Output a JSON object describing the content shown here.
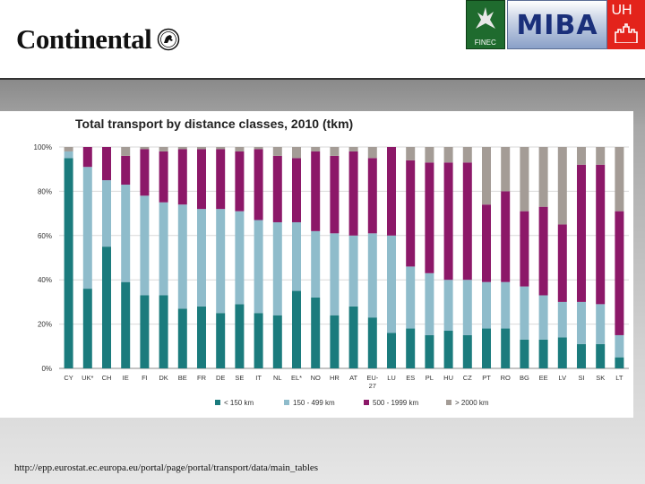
{
  "header": {
    "company_logo": "Continental",
    "partner_logos": {
      "finec": "FINEC",
      "miba": "MIBA",
      "uhh": "UH"
    }
  },
  "chart_data": {
    "type": "bar",
    "stacked": true,
    "title": "Total transport by distance classes, 2010 (tkm)",
    "ylim": [
      0,
      100
    ],
    "yticks": [
      "0%",
      "20%",
      "40%",
      "60%",
      "80%",
      "100%"
    ],
    "categories": [
      "CY",
      "UK*",
      "CH",
      "IE",
      "FI",
      "DK",
      "BE",
      "FR",
      "DE",
      "SE",
      "IT",
      "NL",
      "EL*",
      "NO",
      "HR",
      "AT",
      "EU-27",
      "LU",
      "ES",
      "PL",
      "HU",
      "CZ",
      "PT",
      "RO",
      "BG",
      "EE",
      "LV",
      "SI",
      "SK",
      "LT"
    ],
    "series": [
      {
        "name": "< 150 km",
        "color": "#1b7b7d",
        "values": [
          95,
          36,
          55,
          39,
          33,
          33,
          27,
          28,
          25,
          29,
          25,
          24,
          35,
          32,
          24,
          28,
          23,
          16,
          18,
          15,
          17,
          15,
          18,
          18,
          13,
          13,
          14,
          11,
          11,
          5
        ]
      },
      {
        "name": "150 - 499 km",
        "color": "#8fbccb",
        "values": [
          3,
          55,
          30,
          44,
          45,
          42,
          47,
          44,
          47,
          42,
          42,
          42,
          31,
          30,
          37,
          32,
          38,
          44,
          28,
          28,
          23,
          25,
          21,
          21,
          24,
          20,
          16,
          19,
          18,
          10
        ]
      },
      {
        "name": "500 - 1999 km",
        "color": "#8c1868",
        "values": [
          0,
          9,
          15,
          13,
          21,
          23,
          25,
          27,
          27,
          27,
          32,
          30,
          29,
          36,
          35,
          38,
          34,
          40,
          48,
          50,
          53,
          53,
          35,
          41,
          34,
          40,
          35,
          62,
          63,
          56
        ]
      },
      {
        "name": "> 2000 km",
        "color": "#a49c96",
        "values": [
          2,
          0,
          0,
          4,
          1,
          2,
          1,
          1,
          1,
          2,
          1,
          4,
          5,
          2,
          4,
          2,
          5,
          0,
          6,
          7,
          7,
          7,
          26,
          20,
          29,
          27,
          35,
          8,
          8,
          29
        ]
      }
    ]
  },
  "source_text": "http://epp.eurostat.ec.europa.eu/portal/page/portal/transport/data/main_tables"
}
